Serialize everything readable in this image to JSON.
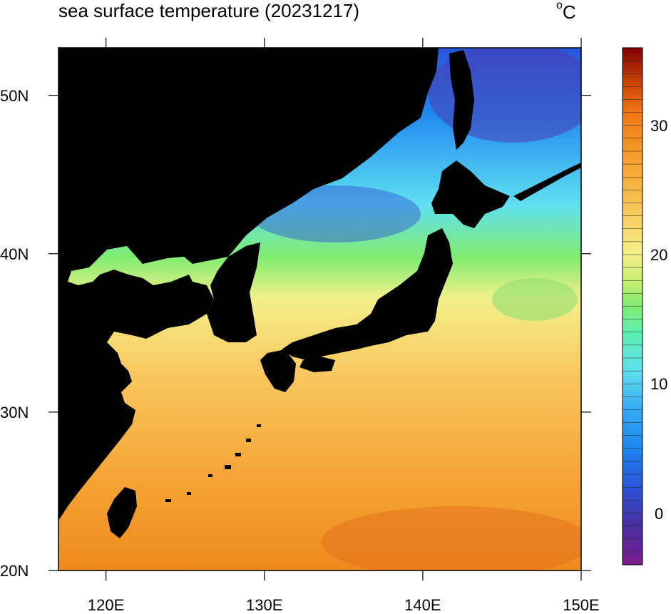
{
  "title": "sea surface temperature (20231217)",
  "unit": {
    "symbol": "C",
    "superscript": "o"
  },
  "map": {
    "lon_range": [
      117,
      150
    ],
    "lat_range": [
      20,
      53
    ],
    "land_color": "#000000"
  },
  "axes": {
    "x_ticks": [
      {
        "value": 120,
        "label": "120E"
      },
      {
        "value": 130,
        "label": "130E"
      },
      {
        "value": 140,
        "label": "140E"
      },
      {
        "value": 150,
        "label": "150E"
      }
    ],
    "y_ticks": [
      {
        "value": 20,
        "label": "20N"
      },
      {
        "value": 30,
        "label": "30N"
      },
      {
        "value": 40,
        "label": "40N"
      },
      {
        "value": 50,
        "label": "50N"
      }
    ]
  },
  "colorbar": {
    "min": -4,
    "max": 36,
    "labels": [
      {
        "value": 0,
        "label": "0"
      },
      {
        "value": 10,
        "label": "10"
      },
      {
        "value": 20,
        "label": "20"
      },
      {
        "value": 30,
        "label": "30"
      }
    ],
    "stops": [
      {
        "value": -4,
        "color": "#7a1e8c"
      },
      {
        "value": -1,
        "color": "#4a2ea0"
      },
      {
        "value": 2,
        "color": "#2a55d8"
      },
      {
        "value": 5,
        "color": "#1f86f0"
      },
      {
        "value": 8,
        "color": "#35aaf2"
      },
      {
        "value": 11,
        "color": "#5fe0f0"
      },
      {
        "value": 14,
        "color": "#5ef0b0"
      },
      {
        "value": 16,
        "color": "#80ec70"
      },
      {
        "value": 18,
        "color": "#c8f070"
      },
      {
        "value": 20,
        "color": "#f4f08a"
      },
      {
        "value": 22,
        "color": "#f8d870"
      },
      {
        "value": 25,
        "color": "#f7b745"
      },
      {
        "value": 28,
        "color": "#f39a2a"
      },
      {
        "value": 31,
        "color": "#ef7614"
      },
      {
        "value": 33,
        "color": "#d04a0a"
      },
      {
        "value": 36,
        "color": "#820000"
      }
    ]
  }
}
